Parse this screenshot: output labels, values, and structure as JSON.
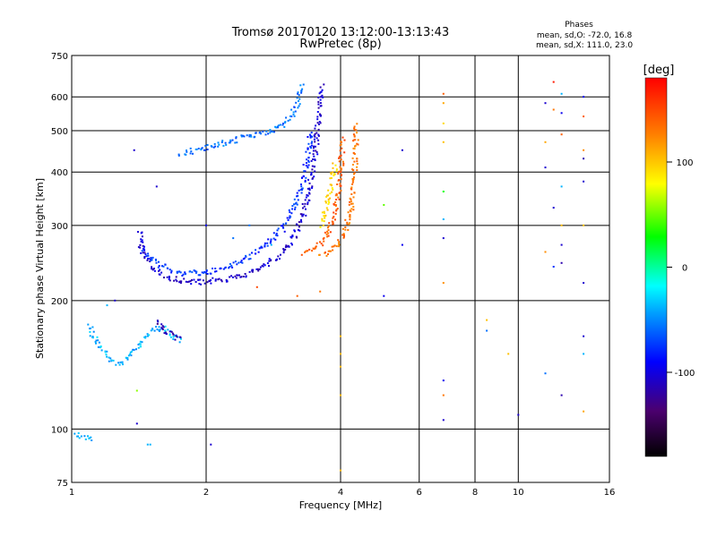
{
  "chart_data": {
    "type": "scatter",
    "title": "Tromsø 20170120 13:12:00-13:13:43",
    "subtitle": "RwPretec (8p)",
    "xlabel": "Frequency [MHz]",
    "ylabel": "Stationary phase Virtual Height [km]",
    "x_scale": "log",
    "y_scale": "log",
    "xlim": [
      1,
      16
    ],
    "ylim": [
      75,
      750
    ],
    "grid": true,
    "x_ticks": [
      1,
      2,
      4,
      6,
      8,
      10,
      16
    ],
    "x_tick_labels": [
      "1",
      "2",
      "4",
      "6",
      "8",
      "10",
      "16"
    ],
    "x_grid": [
      1,
      2,
      4,
      6,
      8,
      10,
      16
    ],
    "y_ticks": [
      75,
      100,
      200,
      300,
      400,
      500,
      600,
      750
    ],
    "y_tick_labels": [
      "75",
      "100",
      "200",
      "300",
      "400",
      "500",
      "600",
      "750"
    ],
    "stats": {
      "heading": "Phases",
      "line_o": "mean, sd,O: -72.0, 16.8",
      "line_x": "mean, sd,X: 111.0, 23.0"
    },
    "colorbar": {
      "label": "[deg]",
      "range": [
        -180,
        180
      ],
      "ticks": [
        -100,
        0,
        100
      ],
      "tick_labels": [
        "-100",
        "0",
        "100"
      ]
    },
    "series": [
      {
        "x": [
          1.42,
          1.43,
          1.45,
          1.47,
          1.5,
          1.53,
          1.56,
          1.6,
          1.65,
          1.7,
          1.75,
          1.8,
          1.85,
          1.9,
          1.95,
          2.0,
          2.05,
          2.1,
          2.2,
          2.3,
          2.4,
          2.5,
          2.6,
          2.7,
          2.8,
          2.9,
          3.0,
          3.1,
          3.2,
          3.3,
          3.4,
          3.5,
          3.55,
          3.6,
          3.62
        ],
        "y": [
          290,
          270,
          256,
          250,
          244,
          238,
          234,
          230,
          227,
          225,
          223,
          222,
          221,
          221,
          221,
          221,
          222,
          223,
          224,
          226,
          229,
          232,
          236,
          241,
          247,
          254,
          263,
          275,
          292,
          320,
          360,
          430,
          500,
          580,
          640
        ],
        "phase": -110
      },
      {
        "x": [
          1.45,
          1.47,
          1.5,
          1.53,
          1.56,
          1.6,
          1.65,
          1.7,
          1.75,
          1.8,
          1.9,
          2.0,
          2.1,
          2.2,
          2.3,
          2.4,
          2.5,
          2.6,
          2.7,
          2.8,
          2.9,
          3.0,
          3.1,
          3.2,
          3.3,
          3.38,
          3.44
        ],
        "y": [
          265,
          258,
          252,
          247,
          243,
          240,
          236,
          233,
          232,
          232,
          232,
          233,
          235,
          238,
          242,
          247,
          253,
          260,
          268,
          277,
          289,
          303,
          320,
          345,
          380,
          430,
          500
        ],
        "phase": -80
      },
      {
        "x": [
          1.75,
          1.8,
          1.9,
          2.0,
          2.1,
          2.2,
          2.4,
          2.6,
          2.8,
          3.0,
          3.1,
          3.2,
          3.25,
          3.3
        ],
        "y": [
          440,
          445,
          450,
          456,
          462,
          468,
          480,
          490,
          500,
          520,
          540,
          580,
          610,
          640
        ],
        "phase": -60
      },
      {
        "x": [
          3.3,
          3.4,
          3.5,
          3.6,
          3.7,
          3.8,
          3.85,
          3.9,
          3.95,
          4.0,
          4.02,
          4.04
        ],
        "y": [
          258,
          260,
          264,
          270,
          280,
          295,
          310,
          330,
          360,
          400,
          440,
          480
        ],
        "phase": 140
      },
      {
        "x": [
          3.6,
          3.7,
          3.8,
          3.9,
          4.0,
          4.1,
          4.2,
          4.25,
          4.3,
          4.32,
          4.35
        ],
        "y": [
          255,
          258,
          262,
          268,
          277,
          292,
          318,
          350,
          400,
          460,
          520
        ],
        "phase": 130
      },
      {
        "x": [
          3.65,
          3.7,
          3.75,
          3.8,
          3.85,
          3.9
        ],
        "y": [
          300,
          320,
          340,
          365,
          390,
          420
        ],
        "phase": 90
      },
      {
        "x": [
          1.1,
          1.12,
          1.15,
          1.18,
          1.2,
          1.22,
          1.25,
          1.28,
          1.3,
          1.33,
          1.36,
          1.4,
          1.45,
          1.5,
          1.55,
          1.6,
          1.65,
          1.7,
          1.75
        ],
        "y": [
          175,
          165,
          158,
          152,
          148,
          145,
          143,
          142,
          144,
          147,
          150,
          155,
          162,
          168,
          172,
          172,
          170,
          165,
          160
        ],
        "phase": -40
      },
      {
        "x": [
          1.55,
          1.6,
          1.65,
          1.7,
          1.75
        ],
        "y": [
          180,
          172,
          168,
          165,
          162
        ],
        "phase": -120
      },
      {
        "x": [
          1.02,
          1.05,
          1.08,
          1.1,
          1.12
        ],
        "y": [
          97,
          96,
          95,
          94,
          94
        ],
        "phase": -40
      }
    ],
    "scattered_points": [
      {
        "x": 6.8,
        "y": 610,
        "phase": 140
      },
      {
        "x": 6.8,
        "y": 580,
        "phase": 110
      },
      {
        "x": 6.8,
        "y": 520,
        "phase": 90
      },
      {
        "x": 6.8,
        "y": 470,
        "phase": 100
      },
      {
        "x": 6.8,
        "y": 360,
        "phase": 20
      },
      {
        "x": 6.8,
        "y": 310,
        "phase": -40
      },
      {
        "x": 6.8,
        "y": 280,
        "phase": -110
      },
      {
        "x": 6.8,
        "y": 220,
        "phase": 120
      },
      {
        "x": 6.8,
        "y": 130,
        "phase": -100
      },
      {
        "x": 6.8,
        "y": 120,
        "phase": 130
      },
      {
        "x": 6.8,
        "y": 105,
        "phase": -110
      },
      {
        "x": 5.5,
        "y": 450,
        "phase": -110
      },
      {
        "x": 5.5,
        "y": 270,
        "phase": -100
      },
      {
        "x": 5.0,
        "y": 205,
        "phase": -100
      },
      {
        "x": 5.0,
        "y": 335,
        "phase": 40
      },
      {
        "x": 8.5,
        "y": 180,
        "phase": 100
      },
      {
        "x": 8.5,
        "y": 170,
        "phase": -60
      },
      {
        "x": 9.5,
        "y": 150,
        "phase": 100
      },
      {
        "x": 10.0,
        "y": 108,
        "phase": -110
      },
      {
        "x": 11.5,
        "y": 580,
        "phase": -110
      },
      {
        "x": 11.5,
        "y": 470,
        "phase": 110
      },
      {
        "x": 11.5,
        "y": 410,
        "phase": -110
      },
      {
        "x": 11.5,
        "y": 260,
        "phase": 120
      },
      {
        "x": 11.5,
        "y": 135,
        "phase": -60
      },
      {
        "x": 12.0,
        "y": 650,
        "phase": 170
      },
      {
        "x": 12.0,
        "y": 560,
        "phase": 130
      },
      {
        "x": 12.0,
        "y": 330,
        "phase": -110
      },
      {
        "x": 12.0,
        "y": 240,
        "phase": -80
      },
      {
        "x": 12.5,
        "y": 610,
        "phase": -40
      },
      {
        "x": 12.5,
        "y": 550,
        "phase": -100
      },
      {
        "x": 12.5,
        "y": 490,
        "phase": 140
      },
      {
        "x": 12.5,
        "y": 370,
        "phase": -40
      },
      {
        "x": 12.5,
        "y": 300,
        "phase": 100
      },
      {
        "x": 12.5,
        "y": 270,
        "phase": -110
      },
      {
        "x": 12.5,
        "y": 245,
        "phase": -120
      },
      {
        "x": 12.5,
        "y": 120,
        "phase": -120
      },
      {
        "x": 14.0,
        "y": 600,
        "phase": -100
      },
      {
        "x": 14.0,
        "y": 540,
        "phase": 140
      },
      {
        "x": 14.0,
        "y": 450,
        "phase": 120
      },
      {
        "x": 14.0,
        "y": 430,
        "phase": -120
      },
      {
        "x": 14.0,
        "y": 380,
        "phase": -110
      },
      {
        "x": 14.0,
        "y": 300,
        "phase": 100
      },
      {
        "x": 14.0,
        "y": 220,
        "phase": -110
      },
      {
        "x": 14.0,
        "y": 165,
        "phase": -110
      },
      {
        "x": 14.0,
        "y": 150,
        "phase": -40
      },
      {
        "x": 14.0,
        "y": 110,
        "phase": 110
      },
      {
        "x": 4.0,
        "y": 165,
        "phase": 100
      },
      {
        "x": 4.0,
        "y": 150,
        "phase": 100
      },
      {
        "x": 4.0,
        "y": 140,
        "phase": 100
      },
      {
        "x": 4.0,
        "y": 120,
        "phase": 100
      },
      {
        "x": 4.0,
        "y": 80,
        "phase": 100
      },
      {
        "x": 3.2,
        "y": 205,
        "phase": 140
      },
      {
        "x": 2.6,
        "y": 215,
        "phase": 150
      },
      {
        "x": 3.6,
        "y": 210,
        "phase": 130
      },
      {
        "x": 1.38,
        "y": 450,
        "phase": -110
      },
      {
        "x": 1.4,
        "y": 103,
        "phase": -110
      },
      {
        "x": 1.4,
        "y": 123,
        "phase": 50
      },
      {
        "x": 1.55,
        "y": 370,
        "phase": -110
      },
      {
        "x": 2.05,
        "y": 92,
        "phase": -110
      },
      {
        "x": 1.48,
        "y": 92,
        "phase": -40
      },
      {
        "x": 1.5,
        "y": 92,
        "phase": -40
      },
      {
        "x": 1.25,
        "y": 200,
        "phase": -110
      },
      {
        "x": 1.2,
        "y": 195,
        "phase": -40
      },
      {
        "x": 2.3,
        "y": 280,
        "phase": -60
      },
      {
        "x": 2.5,
        "y": 300,
        "phase": -60
      },
      {
        "x": 2.8,
        "y": 270,
        "phase": -40
      },
      {
        "x": 3.0,
        "y": 290,
        "phase": -100
      },
      {
        "x": 2.0,
        "y": 300,
        "phase": -100
      }
    ]
  }
}
